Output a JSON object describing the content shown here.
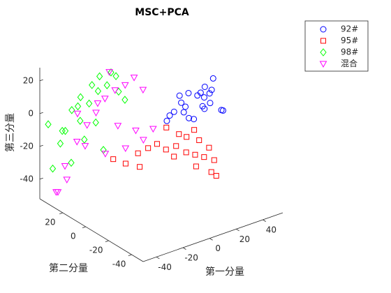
{
  "chart_data": {
    "type": "scatter",
    "title": "MSC+PCA",
    "xlabel": "第一分量",
    "ylabel": "第二分量",
    "zlabel": "第三分量",
    "xlim": [
      -50,
      55
    ],
    "ylim": [
      -50,
      40
    ],
    "zlim": [
      -52,
      28
    ],
    "xticks": [
      -40,
      -20,
      0,
      20,
      40
    ],
    "yticks": [
      -40,
      -20,
      0,
      20
    ],
    "zticks": [
      -40,
      -20,
      0,
      20
    ],
    "legend": "outside-top-right",
    "series": [
      {
        "name": "92#",
        "color": "#0000ff",
        "marker": "circle",
        "x": [
          5,
          10,
          15,
          20,
          25,
          30,
          12,
          18,
          22,
          28,
          33,
          8,
          0,
          -5,
          3,
          14,
          24,
          32,
          36,
          -8,
          6,
          27
        ],
        "y": [
          -18,
          -20,
          -22,
          -19,
          -21,
          -17,
          -15,
          -23,
          -20,
          -18,
          -22,
          -16,
          -19,
          -21,
          -24,
          -20,
          -18,
          -16,
          -20,
          -22,
          -25,
          -14
        ],
        "z": [
          20,
          21,
          19,
          18,
          17,
          16,
          10,
          12,
          8,
          9,
          5,
          14,
          12,
          12,
          13,
          4,
          20,
          22,
          3,
          10,
          9,
          11
        ]
      },
      {
        "name": "95#",
        "color": "#ff0000",
        "marker": "square",
        "x": [
          -15,
          -10,
          -5,
          0,
          5,
          10,
          15,
          20,
          25,
          8,
          12,
          18,
          22,
          -20,
          -12,
          2,
          22,
          24,
          14,
          6,
          -25,
          16
        ],
        "y": [
          -5,
          -8,
          -10,
          -12,
          -15,
          -18,
          -20,
          -22,
          -25,
          -14,
          -16,
          -20,
          -24,
          0,
          -3,
          -10,
          -26,
          -28,
          -22,
          -12,
          5,
          -18
        ],
        "z": [
          -15,
          -12,
          -10,
          -14,
          -12,
          -16,
          -18,
          -20,
          -22,
          -6,
          -8,
          -10,
          -14,
          -22,
          -25,
          -2,
          -28,
          -30,
          -24,
          -20,
          -20,
          -4
        ]
      },
      {
        "name": "98#",
        "color": "#00ff00",
        "marker": "diamond",
        "x": [
          -48,
          -40,
          -35,
          -30,
          -25,
          -20,
          -15,
          -10,
          -38,
          -32,
          -28,
          -22,
          -18,
          -12,
          -42,
          -36,
          -26,
          -16,
          -8,
          -30,
          -20,
          -5
        ],
        "y": [
          35,
          32,
          30,
          28,
          26,
          24,
          22,
          20,
          36,
          33,
          30,
          27,
          25,
          22,
          38,
          34,
          29,
          24,
          20,
          30,
          26,
          18
        ],
        "z": [
          -5,
          -10,
          -30,
          -5,
          5,
          12,
          15,
          20,
          -20,
          0,
          8,
          15,
          20,
          22,
          -35,
          -12,
          -18,
          -25,
          10,
          3,
          -8,
          5
        ]
      },
      {
        "name": "混合",
        "color": "#ff00ff",
        "marker": "triangle-down",
        "x": [
          -45,
          -40,
          -35,
          -30,
          -25,
          -20,
          -15,
          -10,
          -5,
          0,
          5,
          -38,
          -28,
          -18,
          -8,
          2,
          -32,
          -22,
          -12,
          -2,
          -42,
          -15
        ],
        "y": [
          30,
          28,
          25,
          22,
          20,
          18,
          15,
          12,
          10,
          8,
          5,
          32,
          26,
          20,
          14,
          10,
          28,
          22,
          16,
          12,
          35,
          20
        ],
        "z": [
          -45,
          -38,
          -15,
          -5,
          2,
          10,
          15,
          18,
          22,
          14,
          -10,
          -32,
          -20,
          -25,
          -22,
          -18,
          0,
          6,
          -8,
          -12,
          -48,
          24
        ]
      }
    ]
  }
}
